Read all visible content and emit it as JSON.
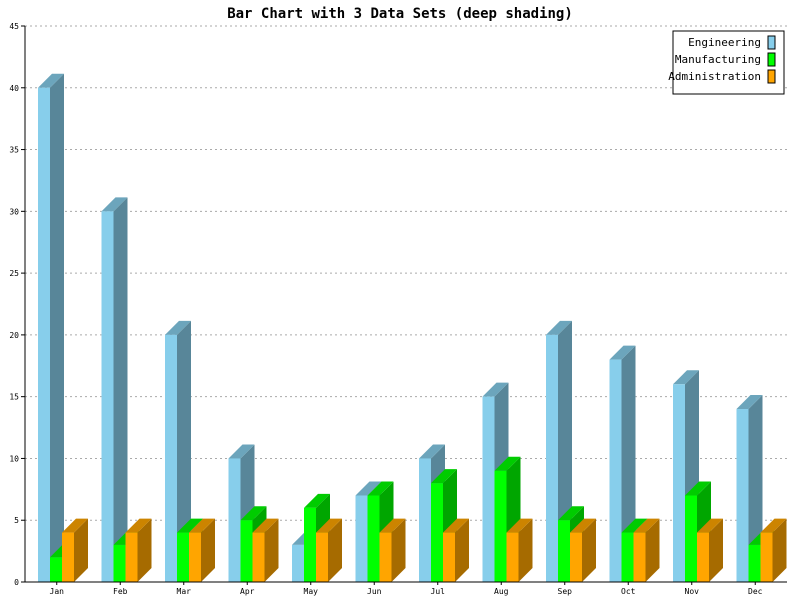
{
  "chart_data": {
    "type": "bar",
    "title": "Bar Chart with 3 Data Sets (deep shading)",
    "categories": [
      "Jan",
      "Feb",
      "Mar",
      "Apr",
      "May",
      "Jun",
      "Jul",
      "Aug",
      "Sep",
      "Oct",
      "Nov",
      "Dec"
    ],
    "series": [
      {
        "name": "Engineering",
        "color": "#87ceeb",
        "values": [
          40,
          30,
          20,
          10,
          3,
          7,
          10,
          15,
          20,
          18,
          16,
          14
        ]
      },
      {
        "name": "Manufacturing",
        "color": "#00ff00",
        "values": [
          2,
          3,
          4,
          5,
          6,
          7,
          8,
          9,
          5,
          4,
          7,
          3
        ]
      },
      {
        "name": "Administration",
        "color": "#ffa500",
        "values": [
          4,
          4,
          4,
          4,
          4,
          4,
          4,
          4,
          4,
          4,
          4,
          4
        ]
      }
    ],
    "ylim": [
      0,
      45
    ],
    "yticks": [
      0,
      5,
      10,
      15,
      20,
      25,
      30,
      35,
      40,
      45
    ],
    "grid": true,
    "legend_position": "top-right",
    "shading": "deep"
  }
}
